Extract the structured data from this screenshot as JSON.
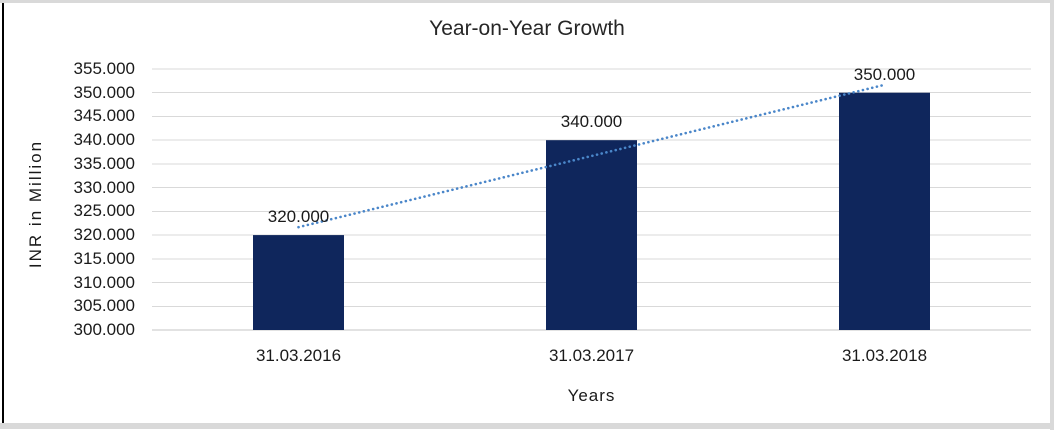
{
  "window": {
    "frame_border_color": "#D9D9D9",
    "left_edge_color": "#000000",
    "background": "#FFFFFF"
  },
  "chart_data": {
    "type": "bar",
    "title": "Year-on-Year Growth",
    "xlabel": "Years",
    "ylabel": "INR in Million",
    "categories": [
      "31.03.2016",
      "31.03.2017",
      "31.03.2018"
    ],
    "values": [
      320000,
      340000,
      350000
    ],
    "data_labels": [
      "320.000",
      "340.000",
      "350.000"
    ],
    "ylim": [
      300000,
      355000
    ],
    "ytick_step": 5000,
    "ytick_labels": [
      "355.000",
      "350.000",
      "345.000",
      "340.000",
      "335.000",
      "330.000",
      "325.000",
      "320.000",
      "315.000",
      "310.000",
      "305.000",
      "300.000"
    ],
    "grid": true,
    "legend_position": "none",
    "bar_color": "#0F265C",
    "gridline_color": "#D9D9D9",
    "axis_line_color": "#C6C6C6",
    "trendline": {
      "type": "linear",
      "style": "dotted",
      "color": "#4A86C9"
    },
    "text_color": "#1A1A1A"
  }
}
